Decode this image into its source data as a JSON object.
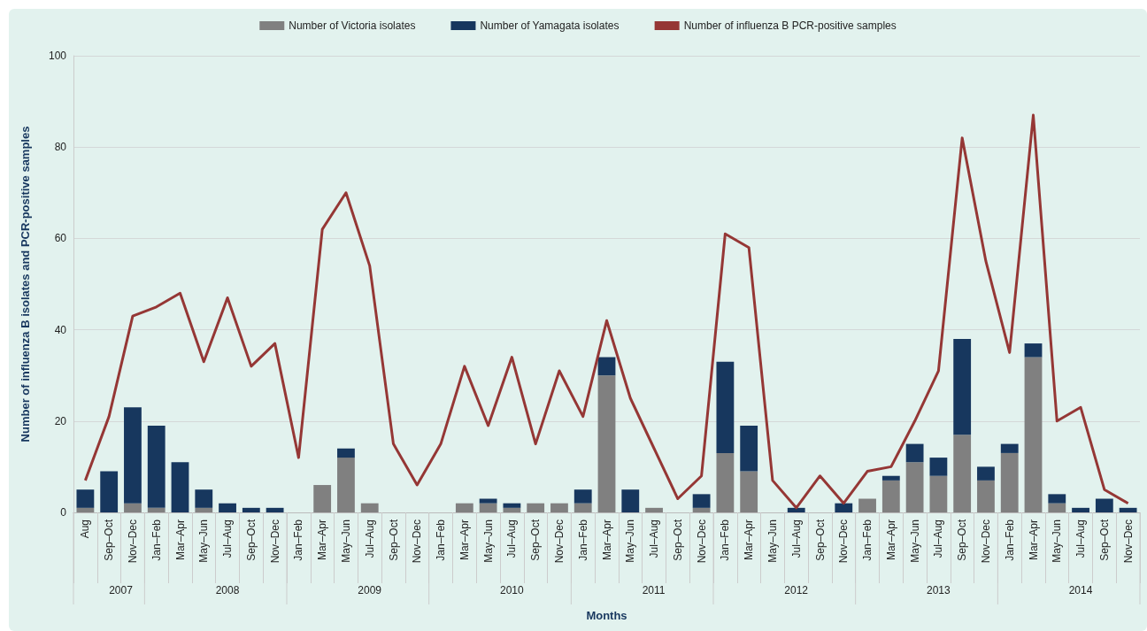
{
  "chart_data": {
    "type": "bar",
    "stacked": true,
    "xlabel": "Months",
    "ylabel": "Number of influenza B isolates and PCR-positive samples",
    "categories": [
      "Aug",
      "Sep–Oct",
      "Nov–Dec",
      "Jan–Feb",
      "Mar–Apr",
      "May–Jun",
      "Jul–Aug",
      "Sep–Oct",
      "Nov–Dec",
      "Jan–Feb",
      "Mar–Apr",
      "May–Jun",
      "Jul–Aug",
      "Sep–Oct",
      "Nov–Dec",
      "Jan–Feb",
      "Mar–Apr",
      "May–Jun",
      "Jul–Aug",
      "Sep–Oct",
      "Nov–Dec",
      "Jan–Feb",
      "Mar–Apr",
      "May–Jun",
      "Jul–Aug",
      "Sep–Oct",
      "Nov–Dec",
      "Jan–Feb",
      "Mar–Apr",
      "May–Jun",
      "Jul–Aug",
      "Sep–Oct",
      "Nov–Dec",
      "Jan–Feb",
      "Mar–Apr",
      "May–Jun",
      "Jul–Aug",
      "Sep–Oct",
      "Nov–Dec",
      "Jan–Feb",
      "Mar–Apr",
      "May–Jun",
      "Jul–Aug",
      "Sep–Oct",
      "Nov–Dec"
    ],
    "series": [
      {
        "name": "Number of Victoria isolates",
        "color": "#808080",
        "values": [
          1,
          0,
          2,
          1,
          0,
          1,
          0,
          0,
          0,
          0,
          6,
          12,
          2,
          0,
          0,
          0,
          2,
          2,
          1,
          2,
          2,
          2,
          30,
          0,
          1,
          0,
          1,
          13,
          9,
          0,
          0,
          0,
          0,
          3,
          7,
          11,
          8,
          17,
          7,
          13,
          34,
          2,
          0,
          0,
          0
        ]
      },
      {
        "name": "Number of Yamagata isolates",
        "color": "#17375e",
        "values": [
          4,
          9,
          21,
          18,
          11,
          4,
          2,
          1,
          1,
          0,
          0,
          2,
          0,
          0,
          0,
          0,
          0,
          1,
          1,
          0,
          0,
          3,
          4,
          5,
          0,
          0,
          3,
          20,
          10,
          0,
          1,
          0,
          2,
          0,
          1,
          4,
          4,
          21,
          3,
          2,
          3,
          2,
          1,
          3,
          1
        ]
      },
      {
        "name": "Number of influenza B PCR-positive samples",
        "type": "line",
        "color": "#953735",
        "values": [
          7,
          21,
          43,
          45,
          48,
          33,
          47,
          32,
          37,
          12,
          62,
          70,
          54,
          15,
          6,
          15,
          32,
          19,
          34,
          15,
          31,
          21,
          42,
          25,
          14,
          3,
          8,
          61,
          58,
          7,
          1,
          8,
          2,
          9,
          10,
          20,
          31,
          82,
          55,
          35,
          87,
          20,
          23,
          5,
          2
        ]
      }
    ],
    "ylim": [
      0,
      100
    ],
    "yticks": [
      0,
      20,
      40,
      60,
      80,
      100
    ],
    "grid": "y",
    "legend": "top",
    "marker": "none",
    "annotations": [
      "2007",
      "2008",
      "2009",
      "2010",
      "2011",
      "2012",
      "2013",
      "2014"
    ]
  }
}
